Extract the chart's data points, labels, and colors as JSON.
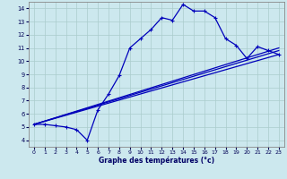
{
  "xlabel": "Graphe des températures (°c)",
  "xlim": [
    -0.5,
    23.5
  ],
  "ylim": [
    3.5,
    14.5
  ],
  "xticks": [
    0,
    1,
    2,
    3,
    4,
    5,
    6,
    7,
    8,
    9,
    10,
    11,
    12,
    13,
    14,
    15,
    16,
    17,
    18,
    19,
    20,
    21,
    22,
    23
  ],
  "yticks": [
    4,
    5,
    6,
    7,
    8,
    9,
    10,
    11,
    12,
    13,
    14
  ],
  "background_color": "#cce8ee",
  "grid_color": "#aacccc",
  "line_color": "#0000bb",
  "main_line": {
    "x": [
      0,
      1,
      2,
      3,
      4,
      5,
      6,
      7,
      8,
      9,
      10,
      11,
      12,
      13,
      14,
      15,
      16,
      17,
      18,
      19,
      20,
      21,
      22,
      23
    ],
    "y": [
      5.2,
      5.2,
      5.1,
      5.0,
      4.8,
      4.0,
      6.3,
      7.5,
      8.9,
      11.0,
      11.7,
      12.4,
      13.3,
      13.1,
      14.3,
      13.8,
      13.8,
      13.3,
      11.7,
      11.2,
      10.2,
      11.1,
      10.8,
      10.5
    ]
  },
  "trend_lines": [
    {
      "x": [
        0,
        23
      ],
      "y": [
        5.2,
        10.5
      ]
    },
    {
      "x": [
        0,
        23
      ],
      "y": [
        5.2,
        10.8
      ]
    },
    {
      "x": [
        0,
        23
      ],
      "y": [
        5.2,
        11.0
      ]
    }
  ]
}
